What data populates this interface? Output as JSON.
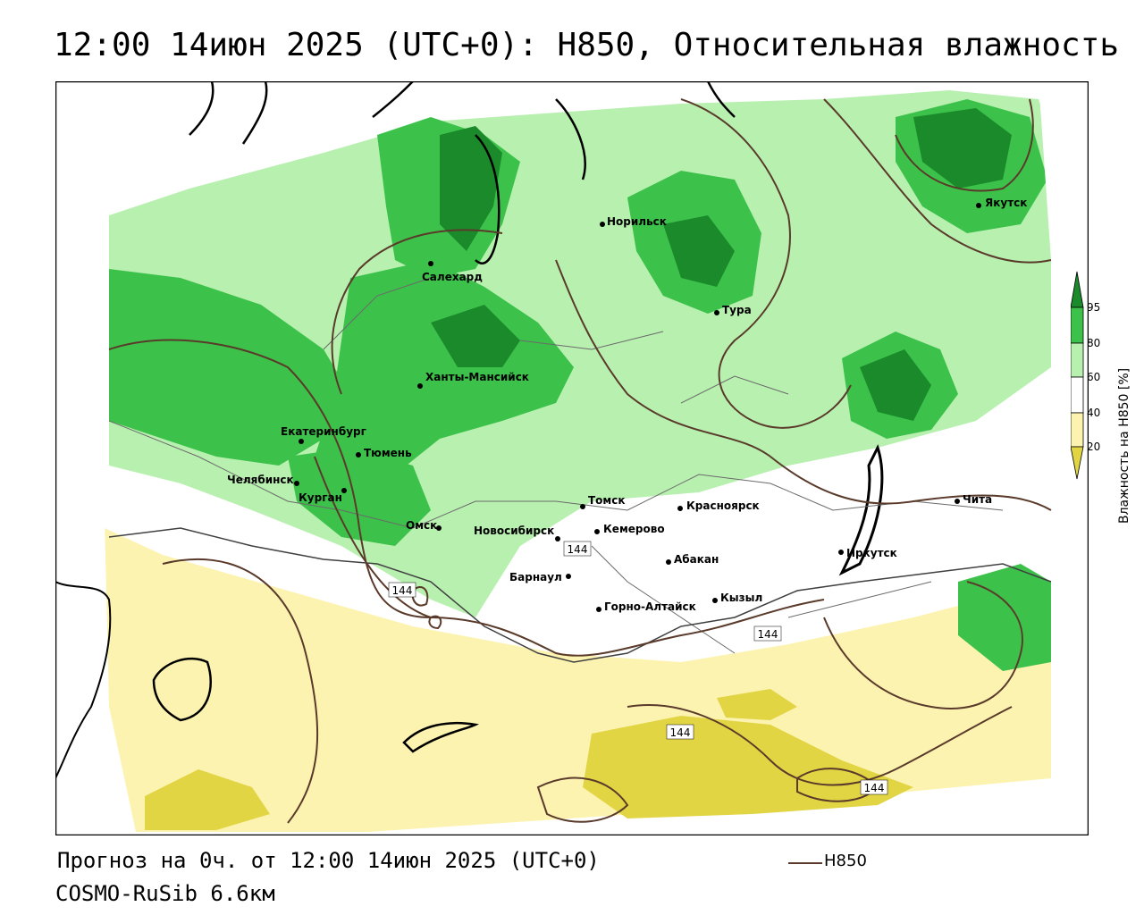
{
  "header": {
    "title": "12:00 14июн 2025 (UTC+0): H850, Относительная влажность"
  },
  "footer": {
    "forecast": "Прогноз на 0ч. от 12:00 14июн 2025 (UTC+0)",
    "model": "COSMO-RuSib 6.6км",
    "line_key_label": "H850"
  },
  "legend": {
    "title": "Влажность на H850 [%]",
    "ticks": [
      "95",
      "80",
      "60",
      "40",
      "20"
    ],
    "colors": {
      "level_95": "#1a8a2a",
      "level_80": "#3cc24a",
      "level_60": "#b8f0b0",
      "level_40_60": "#ffffff",
      "level_20_40": "#fdf3b0",
      "level_below_20": "#e0d040"
    }
  },
  "map": {
    "contour_color": "#5a3a2a",
    "contour_labels": [
      "144",
      "144",
      "144",
      "144",
      "144"
    ],
    "cities": [
      {
        "name": "Якутск"
      },
      {
        "name": "Норильск"
      },
      {
        "name": "Салехард"
      },
      {
        "name": "Тура"
      },
      {
        "name": "Ханты-Мансийск"
      },
      {
        "name": "Екатеринбург"
      },
      {
        "name": "Тюмень"
      },
      {
        "name": "Челябинск"
      },
      {
        "name": "Курган"
      },
      {
        "name": "Омск"
      },
      {
        "name": "Новосибирск"
      },
      {
        "name": "Томск"
      },
      {
        "name": "Кемерово"
      },
      {
        "name": "Красноярск"
      },
      {
        "name": "Барнаул"
      },
      {
        "name": "Абакан"
      },
      {
        "name": "Горно-Алтайск"
      },
      {
        "name": "Кызыл"
      },
      {
        "name": "Иркутск"
      },
      {
        "name": "Чита"
      }
    ]
  }
}
